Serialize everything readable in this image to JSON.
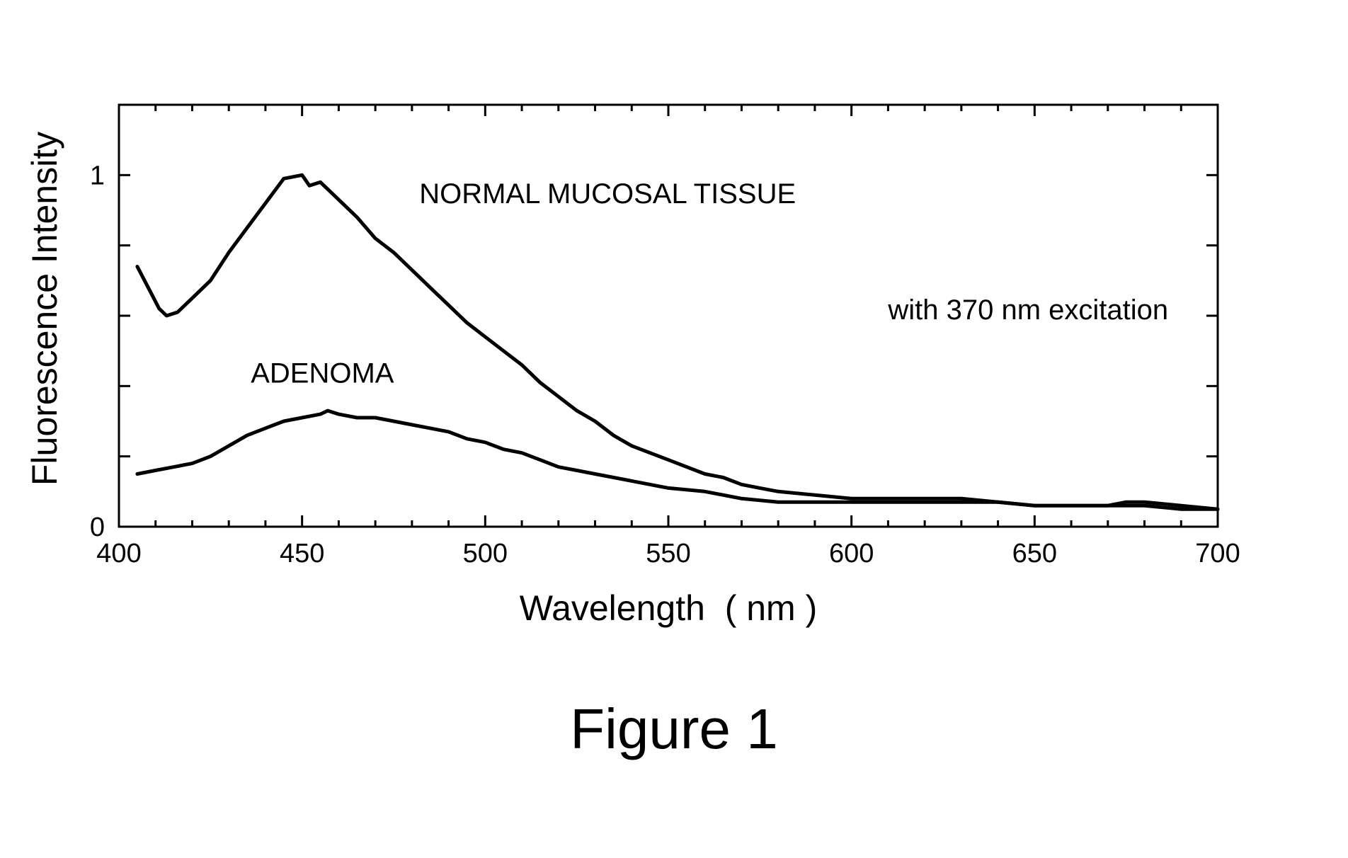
{
  "figure": {
    "caption": "Figure 1"
  },
  "chart_data": {
    "type": "line",
    "title": "",
    "xlabel": "Wavelength  ( nm )",
    "ylabel": "Fluorescence Intensity",
    "xlim": [
      400,
      700
    ],
    "ylim": [
      0,
      1.2
    ],
    "x_ticks": [
      400,
      450,
      500,
      550,
      600,
      650,
      700
    ],
    "x_tick_labels": [
      "400",
      "450",
      "500",
      "550",
      "600",
      "650",
      "700"
    ],
    "y_tick_labels": [
      {
        "value": 0,
        "label": "0"
      },
      {
        "value": 1,
        "label": "1"
      }
    ],
    "grid": false,
    "annotations": [
      {
        "text": "NORMAL MUCOSAL TISSUE",
        "x": 482,
        "y": 0.92
      },
      {
        "text": "with 370 nm excitation",
        "x": 610,
        "y": 0.59
      },
      {
        "text": "ADENOMA",
        "x": 436,
        "y": 0.41
      }
    ],
    "line_color": "#000000",
    "series": [
      {
        "name": "NORMAL MUCOSAL TISSUE",
        "x": [
          405,
          408,
          411,
          413,
          416,
          420,
          425,
          430,
          435,
          440,
          445,
          450,
          452,
          455,
          460,
          465,
          470,
          475,
          480,
          485,
          490,
          495,
          500,
          505,
          510,
          515,
          520,
          525,
          530,
          535,
          540,
          545,
          550,
          555,
          560,
          565,
          570,
          575,
          580,
          590,
          600,
          610,
          620,
          630,
          640,
          650,
          660,
          670,
          675,
          680,
          690,
          700
        ],
        "y": [
          0.74,
          0.68,
          0.62,
          0.6,
          0.61,
          0.65,
          0.7,
          0.78,
          0.85,
          0.92,
          0.99,
          1.0,
          0.97,
          0.98,
          0.93,
          0.88,
          0.82,
          0.78,
          0.73,
          0.68,
          0.63,
          0.58,
          0.54,
          0.5,
          0.46,
          0.41,
          0.37,
          0.33,
          0.3,
          0.26,
          0.23,
          0.21,
          0.19,
          0.17,
          0.15,
          0.14,
          0.12,
          0.11,
          0.1,
          0.09,
          0.08,
          0.08,
          0.08,
          0.08,
          0.07,
          0.06,
          0.06,
          0.06,
          0.07,
          0.07,
          0.06,
          0.05
        ]
      },
      {
        "name": "ADENOMA",
        "x": [
          405,
          410,
          415,
          420,
          425,
          430,
          435,
          440,
          445,
          450,
          455,
          457,
          460,
          465,
          470,
          475,
          480,
          485,
          490,
          495,
          500,
          505,
          510,
          515,
          520,
          525,
          530,
          540,
          550,
          560,
          570,
          580,
          590,
          600,
          610,
          620,
          630,
          640,
          650,
          660,
          670,
          680,
          690,
          700
        ],
        "y": [
          0.15,
          0.16,
          0.17,
          0.18,
          0.2,
          0.23,
          0.26,
          0.28,
          0.3,
          0.31,
          0.32,
          0.33,
          0.32,
          0.31,
          0.31,
          0.3,
          0.29,
          0.28,
          0.27,
          0.25,
          0.24,
          0.22,
          0.21,
          0.19,
          0.17,
          0.16,
          0.15,
          0.13,
          0.11,
          0.1,
          0.08,
          0.07,
          0.07,
          0.07,
          0.07,
          0.07,
          0.07,
          0.07,
          0.06,
          0.06,
          0.06,
          0.06,
          0.05,
          0.05
        ]
      }
    ]
  }
}
